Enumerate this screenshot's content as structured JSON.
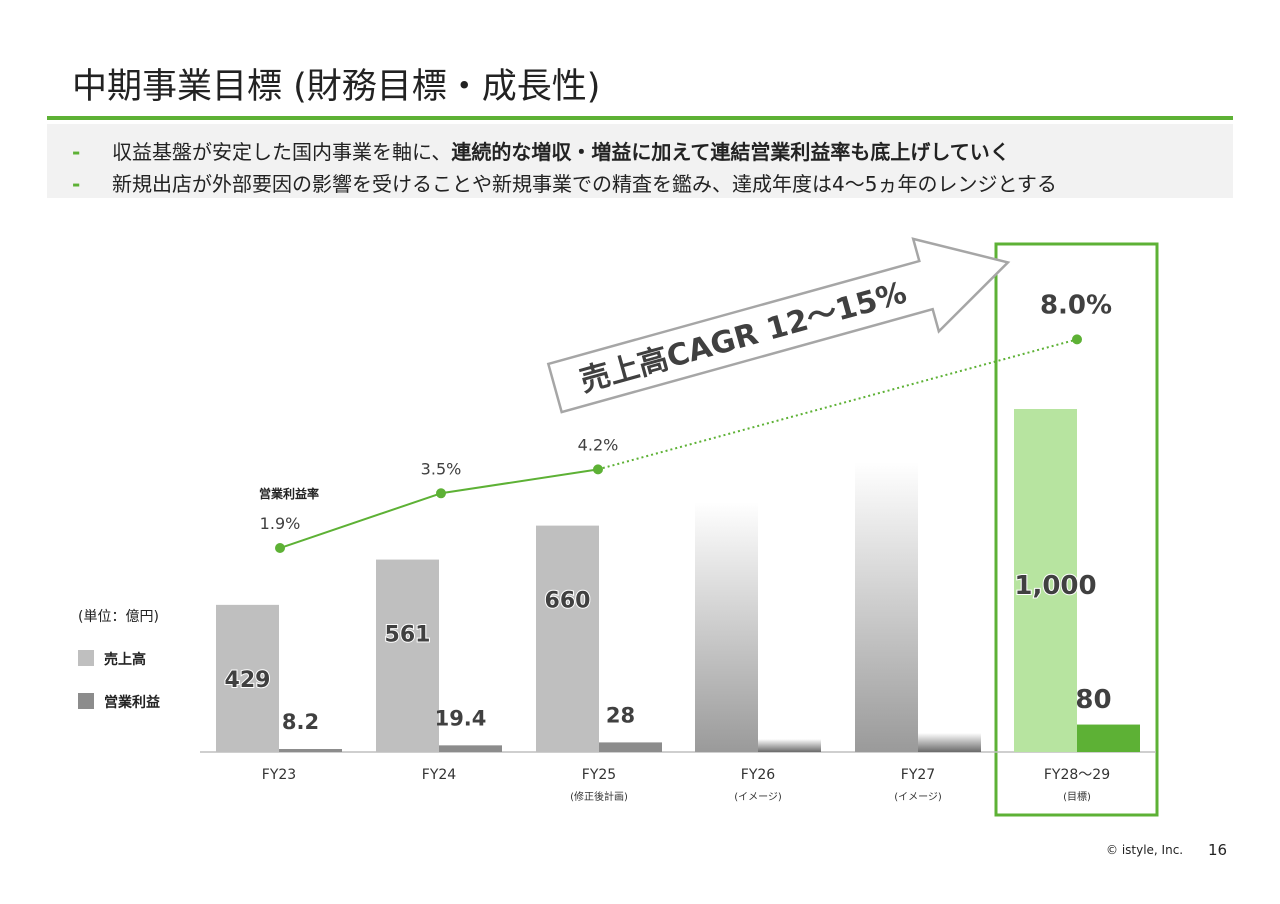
{
  "title": "中期事業目標 (財務目標・成長性)",
  "bullets": {
    "dash": "-",
    "line1_plain": "収益基盤が安定した国内事業を軸に、",
    "line1_bold": "連続的な増収・増益に加えて連結営業利益率も底上げしていく",
    "line2": "新規出店が外部要因の影響を受けることや新規事業での精査を鑑み、達成年度は4～5ヵ年のレンジとする"
  },
  "legend": {
    "unit": "(単位：億円)",
    "sales": "売上高",
    "op_profit": "営業利益"
  },
  "colors": {
    "accent": "#5db135",
    "sales_bar": "#bfbfbf",
    "profit_bar": "#8c8c8c",
    "target_sales": "#b7e4a0",
    "target_profit": "#5db135",
    "arrow_border": "#a6a6a6"
  },
  "chart_data": {
    "type": "bar",
    "categories": [
      "FY23",
      "FY24",
      "FY25",
      "FY26",
      "FY27",
      "FY28～29"
    ],
    "category_notes": [
      "",
      "",
      "(修正後計画)",
      "(イメージ)",
      "(イメージ)",
      "(目標)"
    ],
    "series": [
      {
        "name": "売上高",
        "values": [
          429,
          561,
          660,
          null,
          null,
          1000
        ],
        "labels": [
          "429",
          "561",
          "660",
          "",
          "",
          "1,000"
        ]
      },
      {
        "name": "営業利益",
        "values": [
          8.2,
          19.4,
          28,
          null,
          null,
          80
        ],
        "labels": [
          "8.2",
          "19.4",
          "28",
          "",
          "",
          "80"
        ]
      }
    ],
    "line_series": {
      "name": "営業利益率",
      "values": [
        1.9,
        3.5,
        4.2,
        null,
        null,
        8.0
      ],
      "labels": [
        "1.9%",
        "3.5%",
        "4.2%",
        "",
        "",
        "8.0%"
      ]
    },
    "illustrative": {
      "categories": [
        "FY26",
        "FY27"
      ],
      "note": "(イメージ)"
    },
    "arrow_annotation": "売上高CAGR 12～15%",
    "highlight_category": "FY28～29",
    "ylim": [
      0,
      1000
    ]
  },
  "footer": {
    "copyright": "© istyle, Inc.",
    "page": "16"
  }
}
